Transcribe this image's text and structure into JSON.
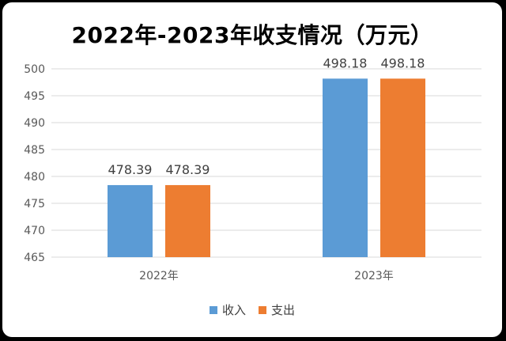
{
  "chart_data": {
    "type": "bar",
    "title": "2022年-2023年收支情况（万元）",
    "categories": [
      "2022年",
      "2023年"
    ],
    "series": [
      {
        "name": "收入",
        "values": [
          478.39,
          498.18
        ],
        "color": "#5B9BD5"
      },
      {
        "name": "支出",
        "values": [
          478.39,
          498.18
        ],
        "color": "#ED7D31"
      }
    ],
    "ylim": [
      465,
      500
    ],
    "yticks": [
      465,
      470,
      475,
      480,
      485,
      490,
      495,
      500
    ],
    "xlabel": "",
    "ylabel": "",
    "grid": true,
    "legend_position": "bottom"
  }
}
